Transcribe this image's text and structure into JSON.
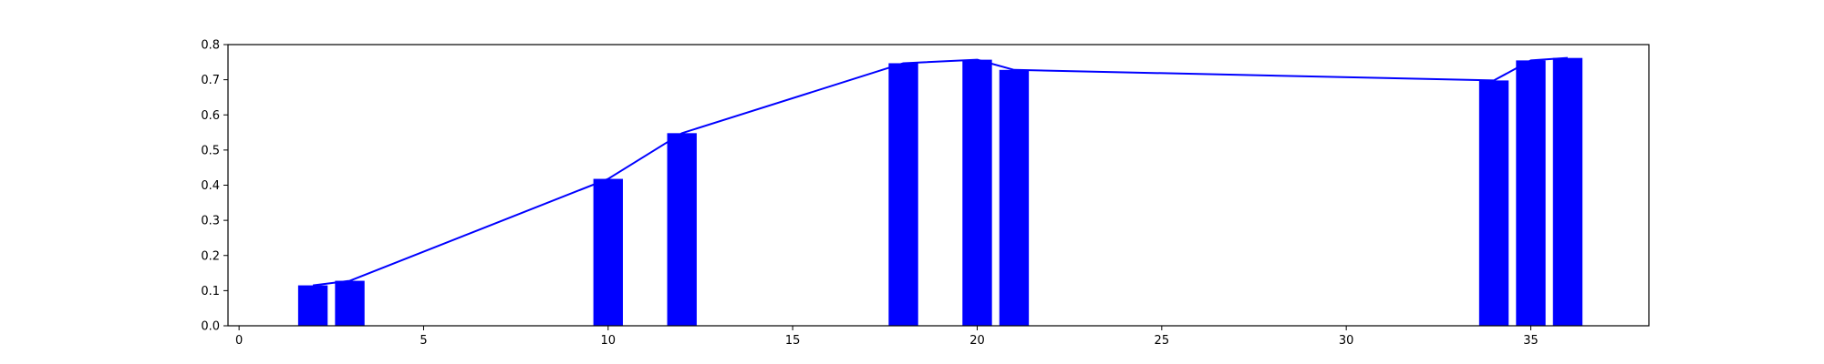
{
  "chart_data": {
    "type": "bar",
    "title": "",
    "xlabel": "",
    "ylabel": "",
    "xlim": [
      -0.3,
      38.2
    ],
    "ylim": [
      0.0,
      0.8
    ],
    "grid": false,
    "bar_width": 0.8,
    "colors": {
      "bar": "#0000ff",
      "line": "#0000ff",
      "axis": "#000000"
    },
    "x_ticks": [
      0,
      5,
      10,
      15,
      20,
      25,
      30,
      35
    ],
    "x_tick_labels": [
      "0",
      "5",
      "10",
      "15",
      "20",
      "25",
      "30",
      "35"
    ],
    "y_ticks": [
      0.0,
      0.1,
      0.2,
      0.3,
      0.4,
      0.5,
      0.6,
      0.7,
      0.8
    ],
    "y_tick_labels": [
      "0.0",
      "0.1",
      "0.2",
      "0.3",
      "0.4",
      "0.5",
      "0.6",
      "0.7",
      "0.8"
    ],
    "series": [
      {
        "type": "bar",
        "x": [
          2,
          3,
          10,
          12,
          18,
          20,
          21,
          34,
          35,
          36
        ],
        "values": [
          0.115,
          0.128,
          0.418,
          0.548,
          0.747,
          0.757,
          0.728,
          0.698,
          0.755,
          0.762
        ]
      },
      {
        "type": "line",
        "x": [
          2,
          3,
          10,
          12,
          18,
          20,
          21,
          34,
          35,
          36
        ],
        "values": [
          0.115,
          0.128,
          0.418,
          0.548,
          0.747,
          0.757,
          0.728,
          0.698,
          0.755,
          0.762
        ]
      }
    ]
  }
}
